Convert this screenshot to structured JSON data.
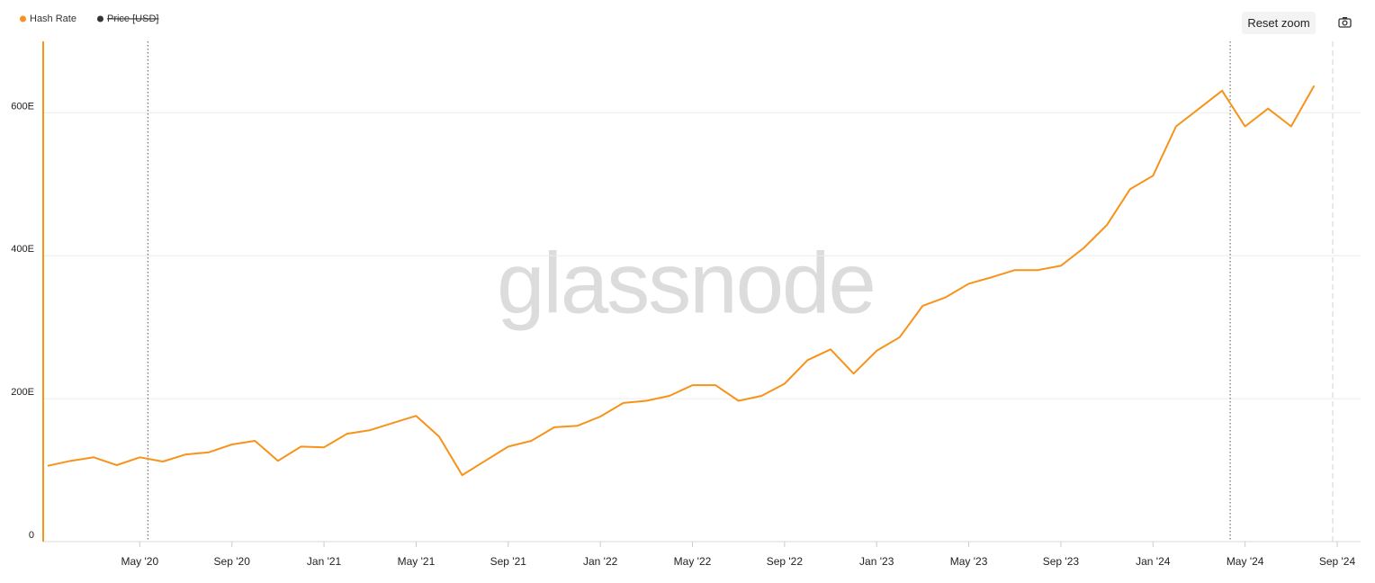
{
  "chart_data": {
    "type": "line",
    "legend": [
      {
        "name": "Hash Rate",
        "color": "#f7931a"
      },
      {
        "name": "Price [USD]",
        "color": "#333333",
        "hidden": true
      }
    ],
    "watermark": "glassnode",
    "x": [
      "2020-01",
      "2020-02",
      "2020-03",
      "2020-04",
      "2020-05",
      "2020-06",
      "2020-07",
      "2020-08",
      "2020-09",
      "2020-10",
      "2020-11",
      "2020-12",
      "2021-01",
      "2021-02",
      "2021-03",
      "2021-04",
      "2021-05",
      "2021-06",
      "2021-07",
      "2021-08",
      "2021-09",
      "2021-10",
      "2021-11",
      "2021-12",
      "2022-01",
      "2022-02",
      "2022-03",
      "2022-04",
      "2022-05",
      "2022-06",
      "2022-07",
      "2022-08",
      "2022-09",
      "2022-10",
      "2022-11",
      "2022-12",
      "2023-01",
      "2023-02",
      "2023-03",
      "2023-04",
      "2023-05",
      "2023-06",
      "2023-07",
      "2023-08",
      "2023-09",
      "2023-10",
      "2023-11",
      "2023-12",
      "2024-01",
      "2024-02",
      "2024-03",
      "2024-04",
      "2024-05",
      "2024-06",
      "2024-07",
      "2024-08"
    ],
    "series": [
      {
        "name": "Hash Rate",
        "color": "#f7931a",
        "values": [
          106,
          113,
          118,
          107,
          118,
          112,
          122,
          125,
          136,
          141,
          113,
          133,
          132,
          151,
          156,
          166,
          176,
          147,
          93,
          113,
          133,
          141,
          160,
          162,
          175,
          194,
          197,
          204,
          219,
          219,
          197,
          204,
          221,
          254,
          269,
          235,
          267,
          286,
          330,
          342,
          361,
          370,
          380,
          380,
          386,
          411,
          443,
          493,
          512,
          581,
          606,
          631,
          581,
          606,
          581,
          638
        ]
      }
    ],
    "xlim": [
      "2020-01",
      "2024-09"
    ],
    "xticks": [
      {
        "value": "2020-05",
        "label": "May '20"
      },
      {
        "value": "2020-09",
        "label": "Sep '20"
      },
      {
        "value": "2021-01",
        "label": "Jan '21"
      },
      {
        "value": "2021-05",
        "label": "May '21"
      },
      {
        "value": "2021-09",
        "label": "Sep '21"
      },
      {
        "value": "2022-01",
        "label": "Jan '22"
      },
      {
        "value": "2022-05",
        "label": "May '22"
      },
      {
        "value": "2022-09",
        "label": "Sep '22"
      },
      {
        "value": "2023-01",
        "label": "Jan '23"
      },
      {
        "value": "2023-05",
        "label": "May '23"
      },
      {
        "value": "2023-09",
        "label": "Sep '23"
      },
      {
        "value": "2024-01",
        "label": "Jan '24"
      },
      {
        "value": "2024-05",
        "label": "May '24"
      },
      {
        "value": "2024-09",
        "label": "Sep '24"
      }
    ],
    "ylim": [
      0,
      700
    ],
    "yticks": [
      0,
      {
        "value": 200,
        "label": "200E"
      },
      {
        "value": 400,
        "label": "400E"
      },
      {
        "value": 600,
        "label": "600E"
      }
    ],
    "grid": true,
    "markers": [
      "2020-05",
      "2024-04"
    ]
  },
  "controls": {
    "reset_zoom": "Reset zoom"
  }
}
